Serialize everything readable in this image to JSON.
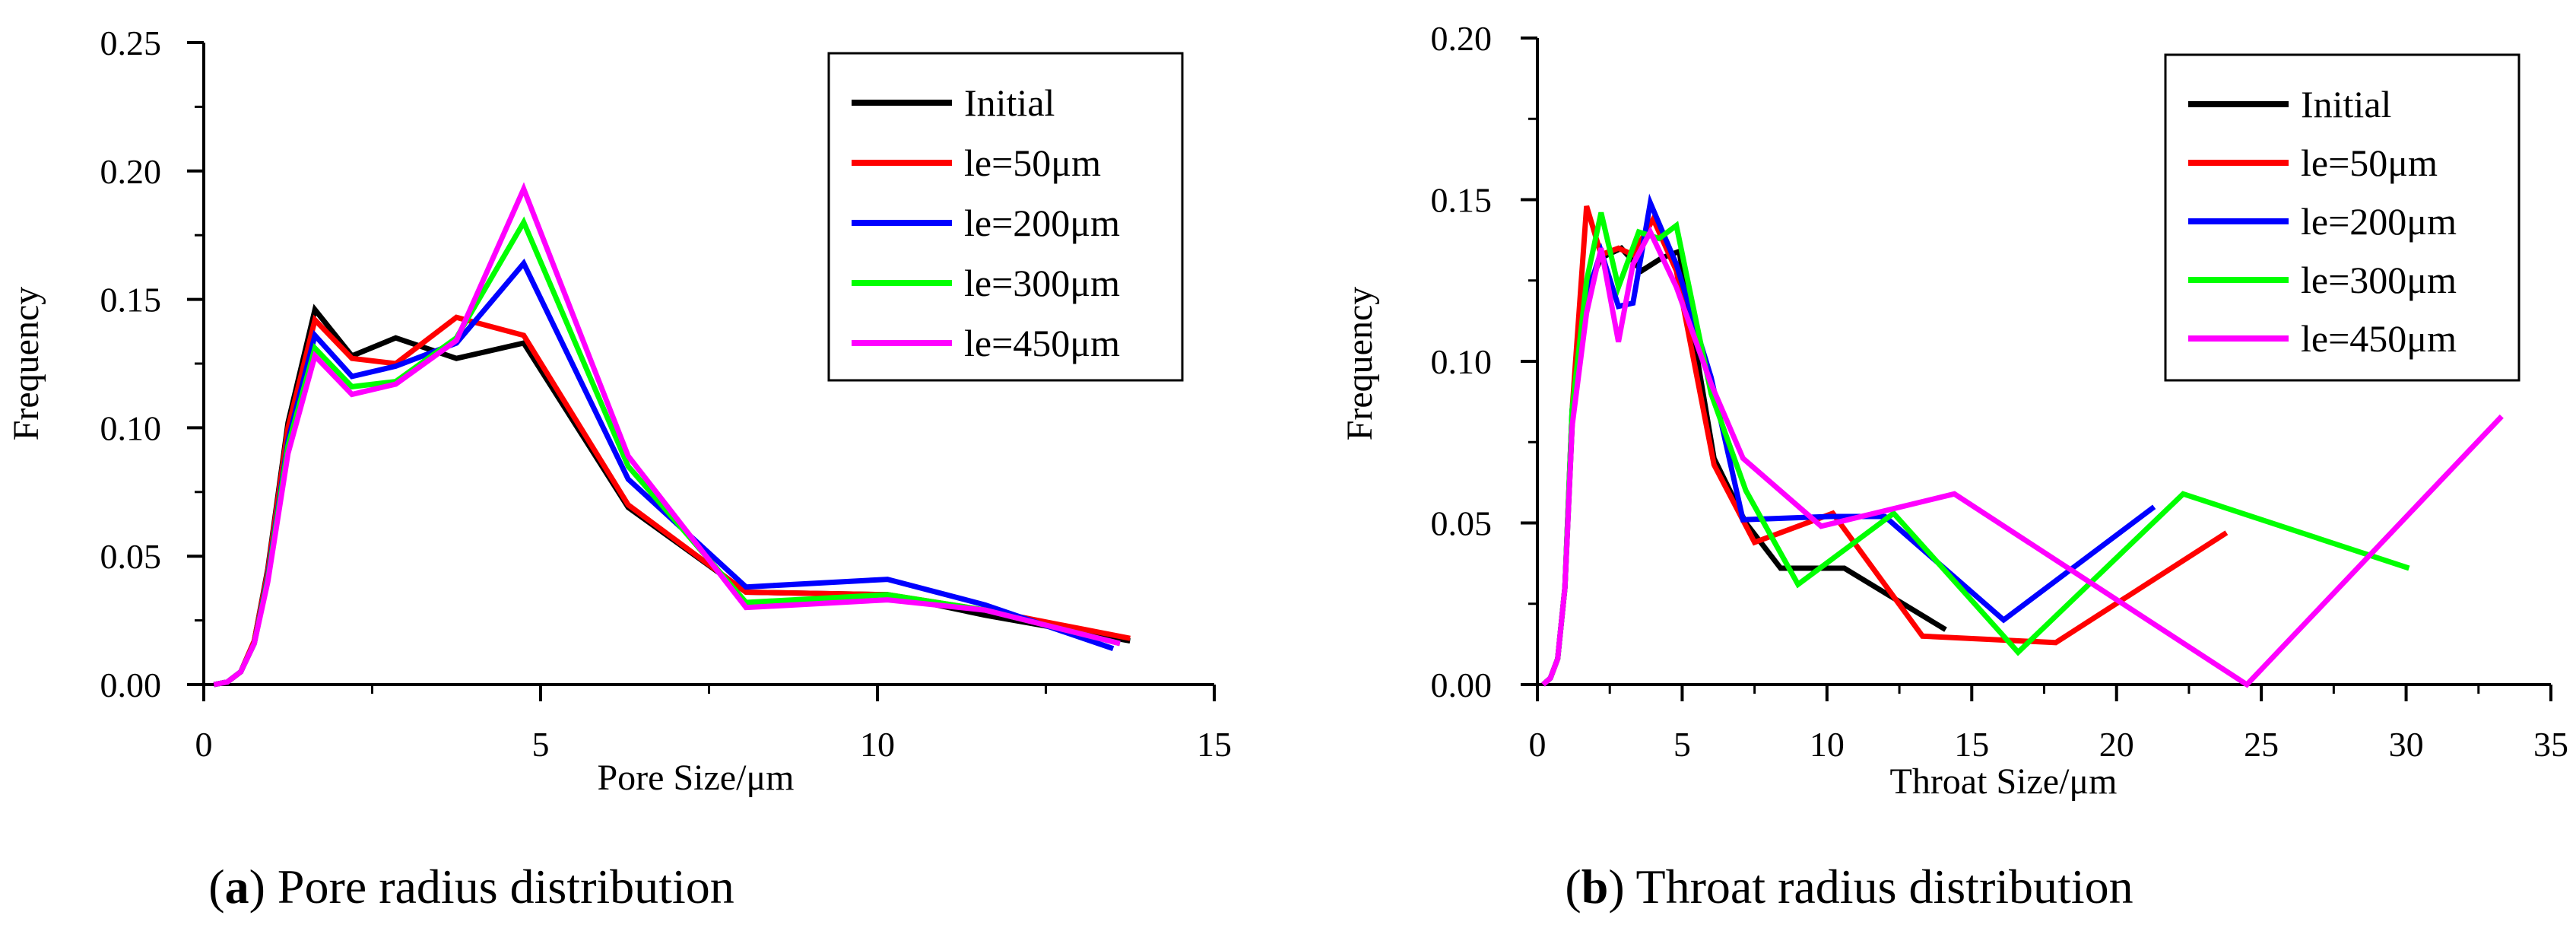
{
  "figure": {
    "caption_a_letter": "a",
    "caption_a_text": "Pore radius distribution",
    "caption_b_letter": "b",
    "caption_b_text": "Throat radius distribution"
  },
  "colors": {
    "Initial": "#000000",
    "le=50μm": "#ff0000",
    "le=200μm": "#0000ff",
    "le=300μm": "#00ff00",
    "le=450μm": "#ff00ff"
  },
  "chart_data": [
    {
      "id": "a",
      "type": "line",
      "title": "",
      "xlabel": "Pore Size/μm",
      "ylabel": "Frequency",
      "xlim": [
        0,
        15
      ],
      "ylim": [
        0,
        0.25
      ],
      "xticks": [
        0,
        5,
        10,
        15
      ],
      "yticks": [
        0.0,
        0.05,
        0.1,
        0.15,
        0.2,
        0.25
      ],
      "xtick_labels": [
        "0",
        "5",
        "10",
        "15"
      ],
      "ytick_labels": [
        "0.00",
        "0.05",
        "0.10",
        "0.15",
        "0.20",
        "0.25"
      ],
      "grid": false,
      "legend": "top-right",
      "series": [
        {
          "name": "Initial",
          "x": [
            0.15,
            0.35,
            0.55,
            0.75,
            0.95,
            1.25,
            1.65,
            2.2,
            2.85,
            3.75,
            4.75,
            6.3,
            8.05,
            10.15,
            11.6,
            13.75
          ],
          "y": [
            0.0,
            0.001,
            0.005,
            0.017,
            0.045,
            0.102,
            0.146,
            0.128,
            0.135,
            0.127,
            0.133,
            0.069,
            0.036,
            0.035,
            0.027,
            0.017
          ]
        },
        {
          "name": "le=50μm",
          "x": [
            0.15,
            0.35,
            0.55,
            0.75,
            0.95,
            1.25,
            1.65,
            2.2,
            2.85,
            3.75,
            4.75,
            6.3,
            8.05,
            10.15,
            11.6,
            13.75
          ],
          "y": [
            0.0,
            0.001,
            0.005,
            0.017,
            0.044,
            0.1,
            0.142,
            0.127,
            0.125,
            0.143,
            0.136,
            0.07,
            0.036,
            0.035,
            0.029,
            0.018
          ]
        },
        {
          "name": "le=200μm",
          "x": [
            0.15,
            0.35,
            0.55,
            0.75,
            0.95,
            1.25,
            1.65,
            2.2,
            2.85,
            3.75,
            4.75,
            6.3,
            8.05,
            10.15,
            11.6,
            13.5
          ],
          "y": [
            0.0,
            0.001,
            0.005,
            0.016,
            0.042,
            0.095,
            0.136,
            0.12,
            0.124,
            0.133,
            0.164,
            0.08,
            0.038,
            0.041,
            0.031,
            0.014
          ]
        },
        {
          "name": "le=300μm",
          "x": [
            0.15,
            0.35,
            0.55,
            0.75,
            0.95,
            1.25,
            1.65,
            2.2,
            2.85,
            3.75,
            4.75,
            6.3,
            8.05,
            10.15,
            11.6,
            13.6
          ],
          "y": [
            0.0,
            0.001,
            0.005,
            0.016,
            0.041,
            0.093,
            0.131,
            0.116,
            0.118,
            0.135,
            0.18,
            0.085,
            0.032,
            0.035,
            0.029,
            0.016
          ]
        },
        {
          "name": "le=450μm",
          "x": [
            0.15,
            0.35,
            0.55,
            0.75,
            0.95,
            1.25,
            1.65,
            2.2,
            2.85,
            3.75,
            4.75,
            6.3,
            8.05,
            10.15,
            11.6,
            13.6
          ],
          "y": [
            0.0,
            0.001,
            0.005,
            0.016,
            0.04,
            0.09,
            0.128,
            0.113,
            0.117,
            0.134,
            0.193,
            0.089,
            0.03,
            0.033,
            0.029,
            0.016
          ]
        }
      ]
    },
    {
      "id": "b",
      "type": "line",
      "title": "",
      "xlabel": "Throat Size/μm",
      "ylabel": "Frequency",
      "xlim": [
        0,
        35
      ],
      "ylim": [
        0,
        0.2
      ],
      "xticks": [
        0,
        5,
        10,
        15,
        20,
        25,
        30,
        35
      ],
      "yticks": [
        0.0,
        0.05,
        0.1,
        0.15,
        0.2
      ],
      "xtick_labels": [
        "0",
        "5",
        "10",
        "15",
        "20",
        "25",
        "30",
        "35"
      ],
      "ytick_labels": [
        "0.00",
        "0.05",
        "0.10",
        "0.15",
        "0.20"
      ],
      "grid": false,
      "legend": "top-right",
      "series": [
        {
          "name": "Initial",
          "x": [
            0.2,
            0.45,
            0.7,
            0.95,
            1.2,
            1.5,
            2.2,
            2.9,
            3.6,
            4.3,
            4.9,
            6.1,
            7.2,
            8.4,
            10.6,
            14.1
          ],
          "y": [
            0.0,
            0.002,
            0.008,
            0.03,
            0.08,
            0.118,
            0.132,
            0.135,
            0.128,
            0.132,
            0.134,
            0.07,
            0.05,
            0.036,
            0.036,
            0.017
          ]
        },
        {
          "name": "le=50μm",
          "x": [
            0.2,
            0.45,
            0.7,
            0.95,
            1.2,
            1.7,
            2.2,
            2.8,
            3.3,
            4.0,
            4.8,
            6.1,
            7.5,
            10.2,
            13.3,
            17.9,
            23.8
          ],
          "y": [
            0.0,
            0.002,
            0.008,
            0.03,
            0.085,
            0.148,
            0.133,
            0.135,
            0.133,
            0.144,
            0.128,
            0.068,
            0.044,
            0.053,
            0.015,
            0.013,
            0.047
          ]
        },
        {
          "name": "le=200μm",
          "x": [
            0.2,
            0.45,
            0.7,
            0.95,
            1.2,
            1.7,
            2.2,
            2.8,
            3.3,
            3.9,
            4.8,
            6.0,
            7.1,
            10.1,
            12.0,
            16.1,
            21.3
          ],
          "y": [
            0.0,
            0.002,
            0.008,
            0.03,
            0.085,
            0.12,
            0.134,
            0.117,
            0.118,
            0.149,
            0.13,
            0.095,
            0.051,
            0.052,
            0.052,
            0.02,
            0.055
          ]
        },
        {
          "name": "le=300μm",
          "x": [
            0.2,
            0.45,
            0.7,
            0.95,
            1.2,
            1.7,
            2.2,
            2.8,
            3.5,
            4.2,
            4.8,
            6.0,
            7.2,
            9.0,
            12.3,
            16.6,
            22.3,
            30.1
          ],
          "y": [
            0.0,
            0.002,
            0.008,
            0.03,
            0.085,
            0.125,
            0.146,
            0.123,
            0.14,
            0.138,
            0.142,
            0.09,
            0.06,
            0.031,
            0.053,
            0.01,
            0.059,
            0.036
          ]
        },
        {
          "name": "le=450μm",
          "x": [
            0.2,
            0.45,
            0.7,
            0.95,
            1.2,
            1.7,
            2.2,
            2.8,
            3.3,
            3.9,
            4.8,
            6.0,
            7.1,
            9.8,
            14.4,
            24.5,
            33.3
          ],
          "y": [
            0.0,
            0.002,
            0.008,
            0.03,
            0.08,
            0.115,
            0.135,
            0.106,
            0.13,
            0.14,
            0.123,
            0.093,
            0.07,
            0.049,
            0.059,
            0.0,
            0.083
          ]
        }
      ]
    }
  ]
}
